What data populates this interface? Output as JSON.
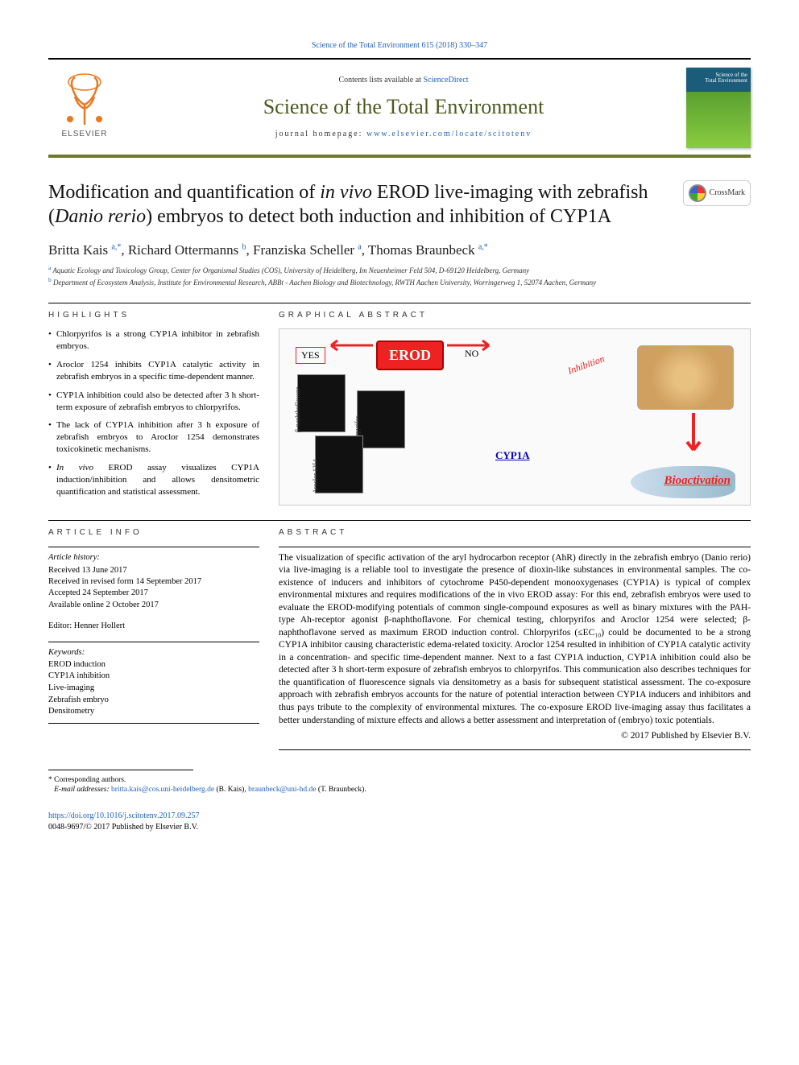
{
  "top_citation": "Science of the Total Environment 615 (2018) 330–347",
  "header": {
    "contents_prefix": "Contents lists available at ",
    "contents_link": "ScienceDirect",
    "journal_name": "Science of the Total Environment",
    "homepage_prefix": "journal homepage: ",
    "homepage_link": "www.elsevier.com/locate/scitotenv",
    "publisher_logo_text": "ELSEVIER",
    "cover_line1": "Science of the",
    "cover_line2": "Total Environment"
  },
  "crossmark_label": "CrossMark",
  "title_parts": {
    "p1": "Modification and quantification of ",
    "p2": "in vivo",
    "p3": " EROD live-imaging with zebrafish (",
    "p4": "Danio rerio",
    "p5": ") embryos to detect both induction and inhibition of CYP1A"
  },
  "authors": {
    "a1": "Britta Kais ",
    "a1sup": "a,*",
    "a2": ", Richard Ottermanns ",
    "a2sup": "b",
    "a3": ", Franziska Scheller ",
    "a3sup": "a",
    "a4": ", Thomas Braunbeck ",
    "a4sup": "a,*"
  },
  "affiliations": {
    "a": "Aquatic Ecology and Toxicology Group, Center for Organismal Studies (COS), University of Heidelberg, Im Neuenheimer Feld 504, D-69120 Heidelberg, Germany",
    "b": "Department of Ecosystem Analysis, Institute for Environmental Research, ABBt - Aachen Biology and Biotechnology, RWTH Aachen University, Worringerweg 1, 52074 Aachen, Germany"
  },
  "sections": {
    "highlights": "HIGHLIGHTS",
    "graphical_abstract": "GRAPHICAL ABSTRACT",
    "article_info": "ARTICLE INFO",
    "abstract": "ABSTRACT"
  },
  "highlights": [
    "Chlorpyrifos is a strong CYP1A inhibitor in zebrafish embryos.",
    "Aroclor 1254 inhibits CYP1A catalytic activity in zebrafish embryos in a specific time-dependent manner.",
    "CYP1A inhibition could also be detected after 3 h short-term exposure of zebrafish embryos to chlorpyrifos.",
    "The lack of CYP1A inhibition after 3 h exposure of zebrafish embryos to Aroclor 1254 demonstrates toxicokinetic mechanisms.",
    "<em>In vivo</em> EROD assay visualizes CYP1A induction/inhibition and allows densitometric quantification and statistical assessment."
  ],
  "graphical_abstract_labels": {
    "erod": "EROD",
    "yes": "YES",
    "no": "NO",
    "inhibition": "Inhibition",
    "cyp1a": "CYP1A",
    "bioactivation": "Bioactivation",
    "thumb1": "β-naphthoflavone",
    "thumb2": "Chlorpyrifos",
    "thumb3": "Aroclor 1254"
  },
  "article_info": {
    "history_head": "Article history:",
    "received": "Received 13 June 2017",
    "revised": "Received in revised form 14 September 2017",
    "accepted": "Accepted 24 September 2017",
    "online": "Available online 2 October 2017",
    "editor_label": "Editor: ",
    "editor_name": "Henner Hollert",
    "keywords_head": "Keywords:",
    "keywords": [
      "EROD induction",
      "CYP1A inhibition",
      "Live-imaging",
      "Zebrafish embryo",
      "Densitometry"
    ]
  },
  "abstract_text": "The visualization of specific activation of the aryl hydrocarbon receptor (AhR) directly in the zebrafish embryo (Danio rerio) via live-imaging is a reliable tool to investigate the presence of dioxin-like substances in environmental samples. The co-existence of inducers and inhibitors of cytochrome P450-dependent monooxygenases (CYP1A) is typical of complex environmental mixtures and requires modifications of the in vivo EROD assay: For this end, zebrafish embryos were used to evaluate the EROD-modifying potentials of common single-compound exposures as well as binary mixtures with the PAH-type Ah-receptor agonist β-naphthoflavone. For chemical testing, chlorpyrifos and Aroclor 1254 were selected; β-naphthoflavone served as maximum EROD induction control. Chlorpyrifos (≤EC₁₀) could be documented to be a strong CYP1A inhibitor causing characteristic edema-related toxicity. Aroclor 1254 resulted in inhibition of CYP1A catalytic activity in a concentration- and specific time-dependent manner. Next to a fast CYP1A induction, CYP1A inhibition could also be detected after 3 h short-term exposure of zebrafish embryos to chlorpyrifos. This communication also describes techniques for the quantification of fluorescence signals via densitometry as a basis for subsequent statistical assessment. The co-exposure approach with zebrafish embryos accounts for the nature of potential interaction between CYP1A inducers and inhibitors and thus pays tribute to the complexity of environmental mixtures. The co-exposure EROD live-imaging assay thus facilitates a better understanding of mixture effects and allows a better assessment and interpretation of (embryo) toxic potentials.",
  "copyright": "© 2017 Published by Elsevier B.V.",
  "footnotes": {
    "corr": "Corresponding authors.",
    "email_label": "E-mail addresses: ",
    "email1": "britta.kais@cos.uni-heidelberg.de",
    "email1_who": " (B. Kais), ",
    "email2": "braunbeck@uni-hd.de",
    "email2_who": " (T. Braunbeck)."
  },
  "doi": {
    "link": "https://doi.org/10.1016/j.scitotenv.2017.09.257",
    "issn_line": "0048-9697/© 2017 Published by Elsevier B.V."
  },
  "colors": {
    "link": "#2060c0",
    "accent_green": "#6b7a2e",
    "journal_green": "#4a5a1e",
    "orange": "#e97820",
    "red": "#e22222"
  }
}
